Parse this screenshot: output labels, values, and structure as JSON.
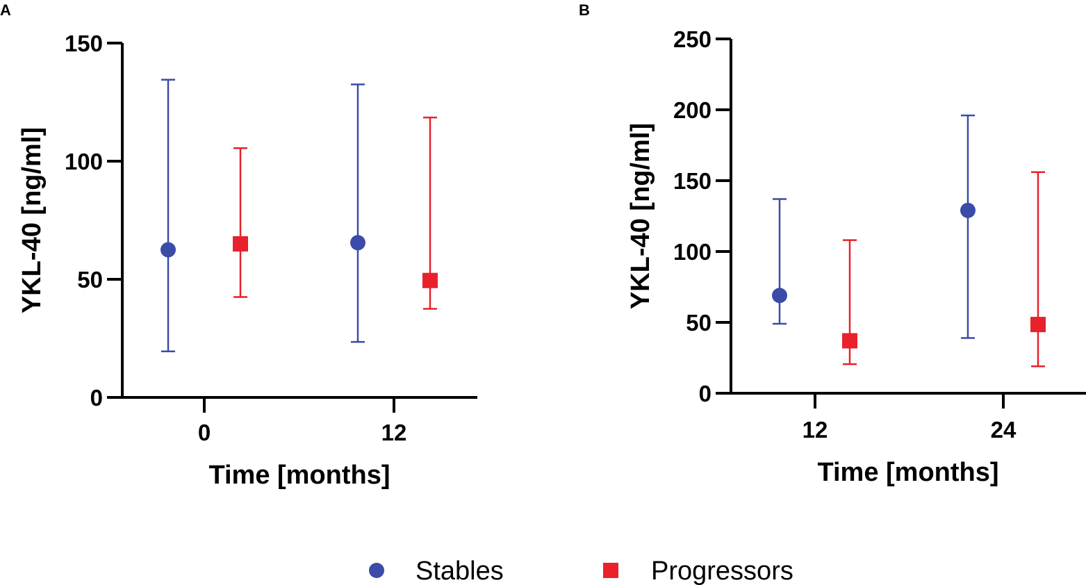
{
  "colors": {
    "stables": "#3b4ba8",
    "progressors": "#e8212a",
    "axis": "#000000"
  },
  "legend": {
    "items": [
      {
        "name": "Stables",
        "marker": "circle",
        "color": "#3b4ba8"
      },
      {
        "name": "Progressors",
        "marker": "square",
        "color": "#e8212a"
      }
    ]
  },
  "chart_data": [
    {
      "panel": "A",
      "type": "scatter",
      "subtype": "error-bar",
      "title": "",
      "xlabel": "Time  [months]",
      "ylabel": "YKL-40 [ng/ml]",
      "categories": [
        "0",
        "12"
      ],
      "ylim": [
        0,
        150
      ],
      "yticks": [
        "0",
        "50",
        "100",
        "150"
      ],
      "series": [
        {
          "name": "Stables",
          "marker": "circle",
          "color": "#3b4ba8",
          "values": [
            62.5,
            65.5
          ],
          "lower": [
            19.5,
            23.5
          ],
          "upper": [
            134.5,
            132.5
          ]
        },
        {
          "name": "Progressors",
          "marker": "square",
          "color": "#e8212a",
          "values": [
            65,
            49.5
          ],
          "lower": [
            42.5,
            37.5
          ],
          "upper": [
            105.5,
            118.5
          ]
        }
      ]
    },
    {
      "panel": "B",
      "type": "scatter",
      "subtype": "error-bar",
      "title": "",
      "xlabel": "Time  [months]",
      "ylabel": "YKL-40 [ng/ml]",
      "categories": [
        "12",
        "24"
      ],
      "ylim": [
        0,
        250
      ],
      "yticks": [
        "0",
        "50",
        "100",
        "150",
        "200",
        "250"
      ],
      "series": [
        {
          "name": "Stables",
          "marker": "circle",
          "color": "#3b4ba8",
          "values": [
            69,
            129
          ],
          "lower": [
            49,
            39
          ],
          "upper": [
            137,
            196
          ]
        },
        {
          "name": "Progressors",
          "marker": "square",
          "color": "#e8212a",
          "values": [
            37,
            48.5
          ],
          "lower": [
            20.5,
            19
          ],
          "upper": [
            108,
            156
          ]
        }
      ]
    }
  ]
}
